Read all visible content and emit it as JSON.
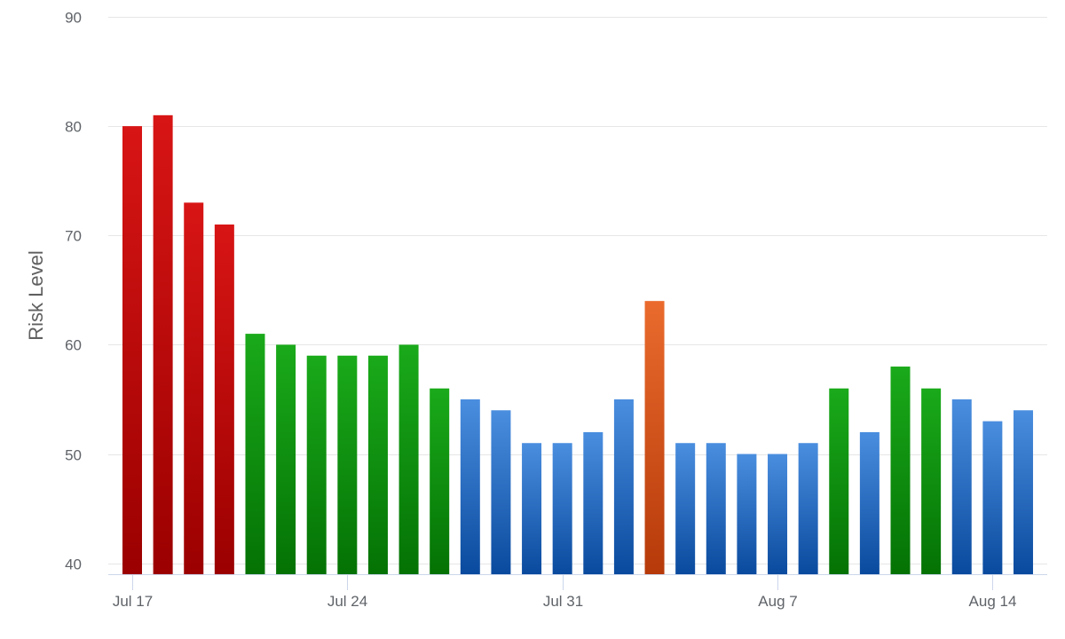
{
  "chart_data": {
    "type": "bar",
    "title": "",
    "xlabel": "",
    "ylabel": "Risk Level",
    "ylim": [
      39,
      90
    ],
    "yticks": [
      40,
      50,
      60,
      70,
      80,
      90
    ],
    "grid": true,
    "legend": "none",
    "x_tick_labels": [
      {
        "date": "2023-07-17",
        "label": "Jul 17"
      },
      {
        "date": "2023-07-24",
        "label": "Jul 24"
      },
      {
        "date": "2023-07-31",
        "label": "Jul 31"
      },
      {
        "date": "2023-08-07",
        "label": "Aug 7"
      },
      {
        "date": "2023-08-14",
        "label": "Aug 14"
      }
    ],
    "palette": {
      "red": {
        "top": "#d81515",
        "bottom": "#9b0000"
      },
      "green": {
        "top": "#1aaa1a",
        "bottom": "#047204"
      },
      "blue": {
        "top": "#4a8edf",
        "bottom": "#0a4a9e"
      },
      "orange": {
        "top": "#ea6b2d",
        "bottom": "#b63a0a"
      },
      "grid": "#e6e6e6",
      "axis": "#ccd6eb",
      "label": "#5f6368"
    },
    "points": [
      {
        "date": "2023-07-17",
        "value": 80,
        "color": "red"
      },
      {
        "date": "2023-07-18",
        "value": 81,
        "color": "red"
      },
      {
        "date": "2023-07-19",
        "value": 73,
        "color": "red"
      },
      {
        "date": "2023-07-20",
        "value": 71,
        "color": "red"
      },
      {
        "date": "2023-07-21",
        "value": 61,
        "color": "green"
      },
      {
        "date": "2023-07-22",
        "value": 60,
        "color": "green"
      },
      {
        "date": "2023-07-23",
        "value": 59,
        "color": "green"
      },
      {
        "date": "2023-07-24",
        "value": 59,
        "color": "green"
      },
      {
        "date": "2023-07-25",
        "value": 59,
        "color": "green"
      },
      {
        "date": "2023-07-26",
        "value": 60,
        "color": "green"
      },
      {
        "date": "2023-07-27",
        "value": 56,
        "color": "green"
      },
      {
        "date": "2023-07-28",
        "value": 55,
        "color": "blue"
      },
      {
        "date": "2023-07-29",
        "value": 54,
        "color": "blue"
      },
      {
        "date": "2023-07-30",
        "value": 51,
        "color": "blue"
      },
      {
        "date": "2023-07-31",
        "value": 51,
        "color": "blue"
      },
      {
        "date": "2023-08-01",
        "value": 52,
        "color": "blue"
      },
      {
        "date": "2023-08-02",
        "value": 55,
        "color": "blue"
      },
      {
        "date": "2023-08-03",
        "value": 64,
        "color": "orange"
      },
      {
        "date": "2023-08-04",
        "value": 51,
        "color": "blue"
      },
      {
        "date": "2023-08-05",
        "value": 51,
        "color": "blue"
      },
      {
        "date": "2023-08-06",
        "value": 50,
        "color": "blue"
      },
      {
        "date": "2023-08-07",
        "value": 50,
        "color": "blue"
      },
      {
        "date": "2023-08-08",
        "value": 51,
        "color": "blue"
      },
      {
        "date": "2023-08-09",
        "value": 56,
        "color": "green"
      },
      {
        "date": "2023-08-10",
        "value": 52,
        "color": "blue"
      },
      {
        "date": "2023-08-11",
        "value": 58,
        "color": "green"
      },
      {
        "date": "2023-08-12",
        "value": 56,
        "color": "green"
      },
      {
        "date": "2023-08-13",
        "value": 55,
        "color": "blue"
      },
      {
        "date": "2023-08-14",
        "value": 53,
        "color": "blue"
      },
      {
        "date": "2023-08-15",
        "value": 54,
        "color": "blue"
      }
    ]
  }
}
